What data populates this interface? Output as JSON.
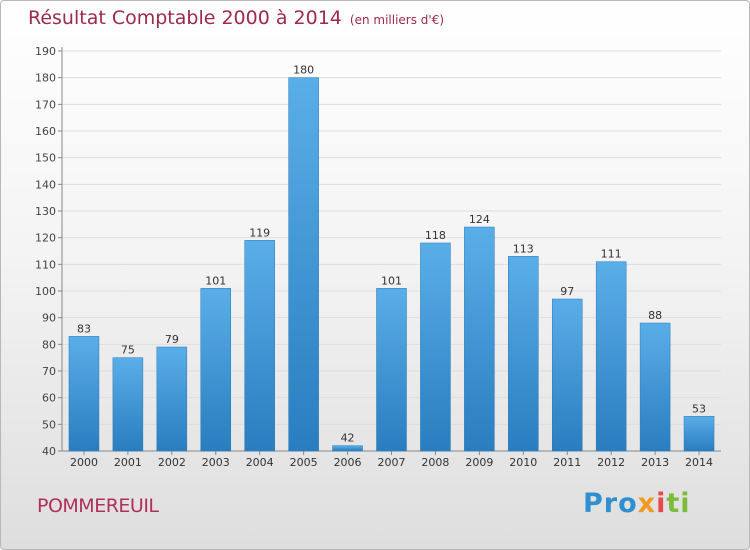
{
  "title": "Résultat Comptable 2000 à 2014",
  "subtitle": "(en milliers d'€)",
  "location": "POMMEREUIL",
  "logo": {
    "p1": "Pro",
    "p2": "x",
    "p3": "i",
    "p4": "ti"
  },
  "colors": {
    "bar_top": "#5aaee8",
    "bar_bottom": "#2a7dbf",
    "title": "#9c2a4a"
  },
  "chart_data": {
    "type": "bar",
    "title": "Résultat Comptable 2000 à 2014",
    "subtitle": "(en milliers d'€)",
    "xlabel": "",
    "ylabel": "",
    "categories": [
      "2000",
      "2001",
      "2002",
      "2003",
      "2004",
      "2005",
      "2006",
      "2007",
      "2008",
      "2009",
      "2010",
      "2011",
      "2012",
      "2013",
      "2014"
    ],
    "values": [
      83,
      75,
      79,
      101,
      119,
      180,
      42,
      101,
      118,
      124,
      113,
      97,
      111,
      88,
      53
    ],
    "ylim": [
      40,
      190
    ],
    "yticks": [
      40,
      50,
      60,
      70,
      80,
      90,
      100,
      110,
      120,
      130,
      140,
      150,
      160,
      170,
      180,
      190
    ],
    "grid": true
  }
}
